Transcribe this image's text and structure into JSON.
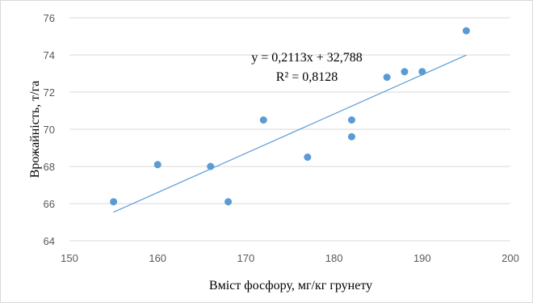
{
  "chart_data": {
    "type": "scatter",
    "xlabel": "Вміст фосфору, мг/кг грунету",
    "ylabel": "Врожайність,  т/га",
    "xlim": [
      150,
      200
    ],
    "ylim": [
      64,
      76
    ],
    "x_ticks": [
      150,
      160,
      170,
      180,
      190,
      200
    ],
    "y_ticks": [
      64,
      66,
      68,
      70,
      72,
      74,
      76
    ],
    "grid": "horizontal",
    "points": [
      {
        "x": 155,
        "y": 66.1
      },
      {
        "x": 160,
        "y": 68.1
      },
      {
        "x": 166,
        "y": 68.0
      },
      {
        "x": 168,
        "y": 66.1
      },
      {
        "x": 172,
        "y": 70.5
      },
      {
        "x": 177,
        "y": 68.5
      },
      {
        "x": 182,
        "y": 70.5
      },
      {
        "x": 182,
        "y": 69.6
      },
      {
        "x": 186,
        "y": 72.8
      },
      {
        "x": 188,
        "y": 73.1
      },
      {
        "x": 190,
        "y": 73.1
      },
      {
        "x": 195,
        "y": 75.3
      }
    ],
    "trendline": {
      "type": "linear",
      "slope": 0.2113,
      "intercept": 32.788,
      "x_range": [
        155,
        195
      ],
      "equation_label": "y = 0,2113x + 32,788",
      "r2_label": "R² = 0,8128"
    },
    "colors": {
      "marker": "#5b9bd5",
      "trendline": "#5b9bd5",
      "grid": "#d9d9d9",
      "tick_text": "#595959"
    }
  }
}
